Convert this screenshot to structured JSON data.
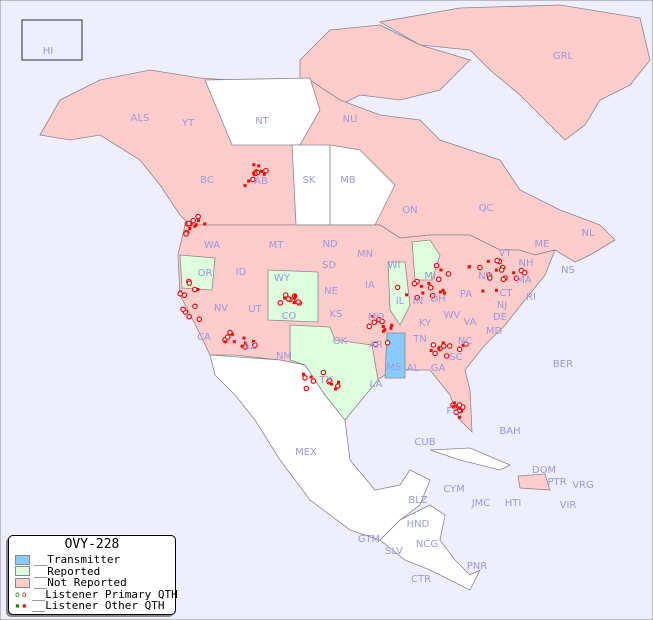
{
  "map": {
    "colors": {
      "ocean": "#eeeeff",
      "not_reported": "#ffcccc",
      "reported": "#ddffdd",
      "transmitter": "#88ccff",
      "unlisted": "#ffffff",
      "label": "#9999dd",
      "listener_primary": "#ff0000",
      "listener_other": "#ff0000",
      "listener_reported": "#008800"
    },
    "labels": [
      "HI",
      "GRL",
      "ALS",
      "YT",
      "NT",
      "NU",
      "BC",
      "AB",
      "SK",
      "MB",
      "ON",
      "QC",
      "NL",
      "NS",
      "WA",
      "MT",
      "ND",
      "MN",
      "WI",
      "MI",
      "OR",
      "ID",
      "WY",
      "SD",
      "IA",
      "IL",
      "IN",
      "OH",
      "PA",
      "NY",
      "VT",
      "NH",
      "ME",
      "MA",
      "CT",
      "RI",
      "NJ",
      "DE",
      "MD",
      "NV",
      "UT",
      "CO",
      "NE",
      "KS",
      "MO",
      "KY",
      "WV",
      "VA",
      "CA",
      "AZ",
      "NM",
      "OK",
      "AR",
      "TN",
      "NC",
      "SC",
      "GA",
      "AL",
      "MS",
      "LA",
      "TX",
      "FL",
      "BER",
      "BAH",
      "CUB",
      "MEX",
      "DOM",
      "PTR",
      "VRG",
      "CYM",
      "JMC",
      "HTI",
      "VIR",
      "BLZ",
      "HND",
      "GTM",
      "SLV",
      "NCG",
      "CTR",
      "PNR"
    ]
  },
  "legend": {
    "title": "OVY-228",
    "items": [
      "__Transmitter",
      "__Reported",
      "__Not Reported",
      "__Listener Primary QTH",
      "__Listener Other QTH"
    ]
  }
}
